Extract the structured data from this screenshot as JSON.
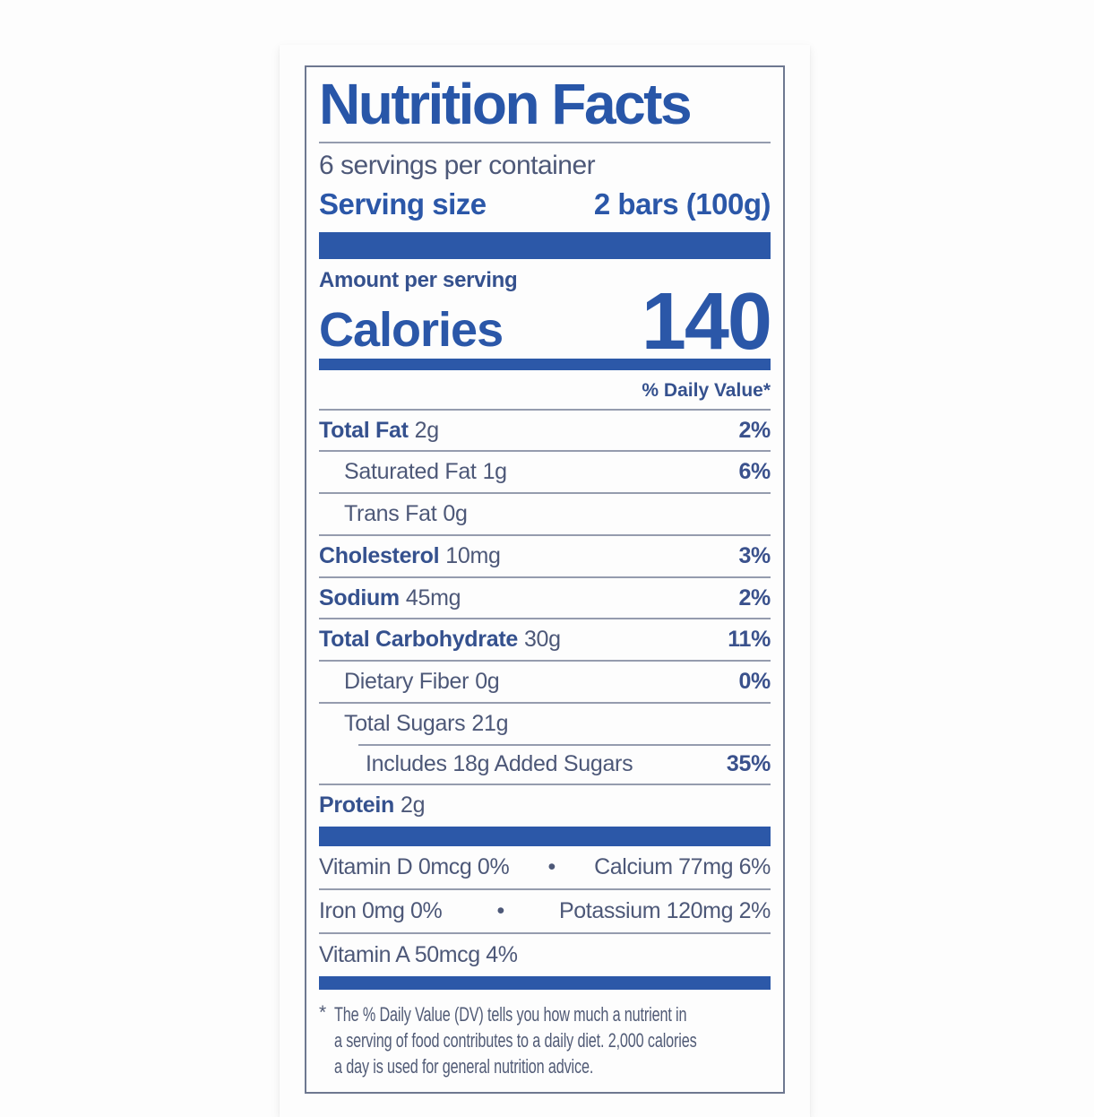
{
  "colors": {
    "label_blue": "#2b57a8",
    "ink_bold": "#35518e",
    "ink": "#4d5878",
    "hairline": "#959cae",
    "panel_background": "#e9e6e0",
    "page_background": "#fdfdfd"
  },
  "label": {
    "title": "Nutrition Facts",
    "servings_per_container": "6 servings per container",
    "serving_size_label": "Serving size",
    "serving_size_value": "2 bars (100g)",
    "amount_per_serving": "Amount per serving",
    "calories_label": "Calories",
    "calories_value": "140",
    "daily_value_header": "% Daily Value*",
    "nutrients": [
      {
        "name": "Total Fat",
        "amount": "2g",
        "dv": "2%"
      },
      {
        "name": "Saturated Fat",
        "amount": "1g",
        "dv": "6%"
      },
      {
        "name": "Trans Fat",
        "amount": "0g",
        "dv": ""
      },
      {
        "name": "Cholesterol",
        "amount": "10mg",
        "dv": "3%"
      },
      {
        "name": "Sodium",
        "amount": "45mg",
        "dv": "2%"
      },
      {
        "name": "Total Carbohydrate",
        "amount": "30g",
        "dv": "11%"
      },
      {
        "name": "Dietary Fiber",
        "amount": "0g",
        "dv": "0%"
      },
      {
        "name": "Total Sugars",
        "amount": "21g",
        "dv": ""
      },
      {
        "name": "Includes 18g Added Sugars",
        "amount": "",
        "dv": "35%"
      },
      {
        "name": "Protein",
        "amount": "2g",
        "dv": ""
      }
    ],
    "micronutrients": [
      {
        "left": "Vitamin D 0mcg 0%",
        "bullet": "•",
        "right": "Calcium 77mg 6%"
      },
      {
        "left": "Iron 0mg 0%",
        "bullet": "•",
        "right": "Potassium 120mg 2%"
      },
      {
        "left": "Vitamin A 50mcg 4%",
        "bullet": "",
        "right": ""
      }
    ],
    "footnote_marker": "*",
    "footnote_lines": [
      "The % Daily Value (DV) tells you how much a nutrient in",
      "a serving of food contributes to a daily diet. 2,000 calories",
      "a day is used for general nutrition advice."
    ]
  }
}
